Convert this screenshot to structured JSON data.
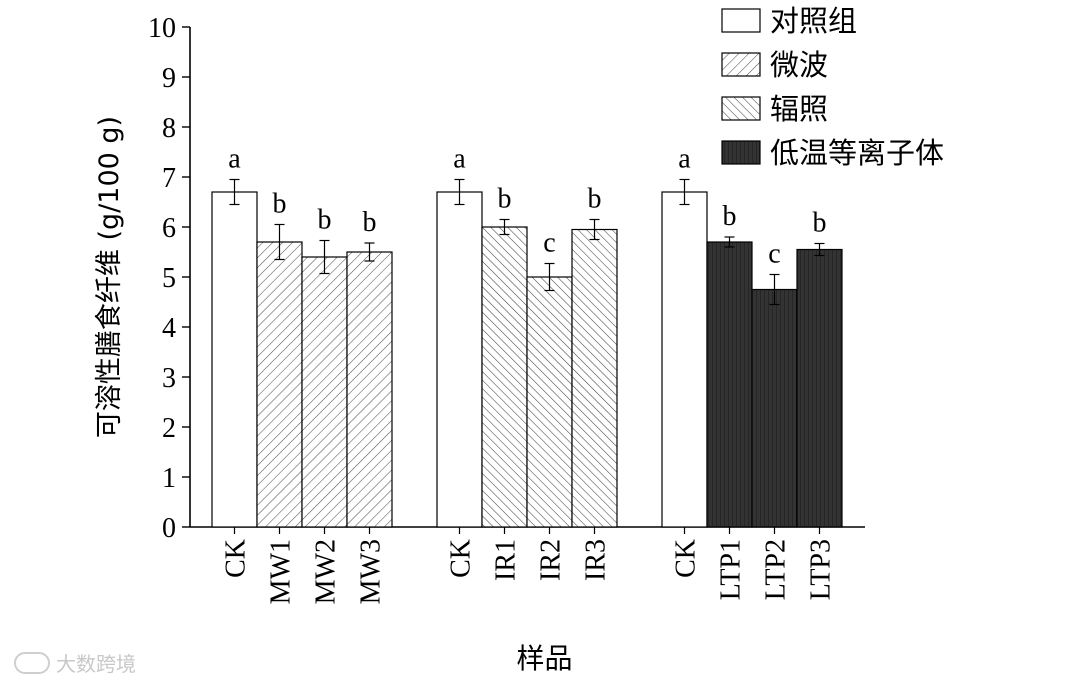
{
  "watermark": "大数跨境",
  "chart_data": {
    "type": "bar",
    "xlabel": "样品",
    "ylabel": "可溶性膳食纤维 (g/100 g)",
    "ylim": [
      0,
      10
    ],
    "yticks": [
      0,
      1,
      2,
      3,
      4,
      5,
      6,
      7,
      8,
      9,
      10
    ],
    "grid": false,
    "legend_position": "top-right",
    "legend": [
      {
        "label": "对照组",
        "pattern": "solid",
        "color": "#ffffff"
      },
      {
        "label": "微波",
        "pattern": "hatch-forward",
        "color": "#ffffff"
      },
      {
        "label": "辐照",
        "pattern": "hatch-backward",
        "color": "#ffffff"
      },
      {
        "label": "低温等离子体",
        "pattern": "dark-vertical",
        "color": "#333333"
      }
    ],
    "groups": [
      {
        "bars": [
          {
            "category": "CK",
            "value": 6.7,
            "error": 0.25,
            "letter": "a",
            "treatment": 0
          },
          {
            "category": "MW1",
            "value": 5.7,
            "error": 0.35,
            "letter": "b",
            "treatment": 1
          },
          {
            "category": "MW2",
            "value": 5.4,
            "error": 0.33,
            "letter": "b",
            "treatment": 1
          },
          {
            "category": "MW3",
            "value": 5.5,
            "error": 0.18,
            "letter": "b",
            "treatment": 1
          }
        ]
      },
      {
        "bars": [
          {
            "category": "CK",
            "value": 6.7,
            "error": 0.25,
            "letter": "a",
            "treatment": 0
          },
          {
            "category": "IR1",
            "value": 6.0,
            "error": 0.15,
            "letter": "b",
            "treatment": 2
          },
          {
            "category": "IR2",
            "value": 5.0,
            "error": 0.27,
            "letter": "c",
            "treatment": 2
          },
          {
            "category": "IR3",
            "value": 5.95,
            "error": 0.2,
            "letter": "b",
            "treatment": 2
          }
        ]
      },
      {
        "bars": [
          {
            "category": "CK",
            "value": 6.7,
            "error": 0.25,
            "letter": "a",
            "treatment": 0
          },
          {
            "category": "LTP1",
            "value": 5.7,
            "error": 0.1,
            "letter": "b",
            "treatment": 3
          },
          {
            "category": "LTP2",
            "value": 4.75,
            "error": 0.3,
            "letter": "c",
            "treatment": 3
          },
          {
            "category": "LTP3",
            "value": 5.55,
            "error": 0.12,
            "letter": "b",
            "treatment": 3
          }
        ]
      }
    ]
  }
}
